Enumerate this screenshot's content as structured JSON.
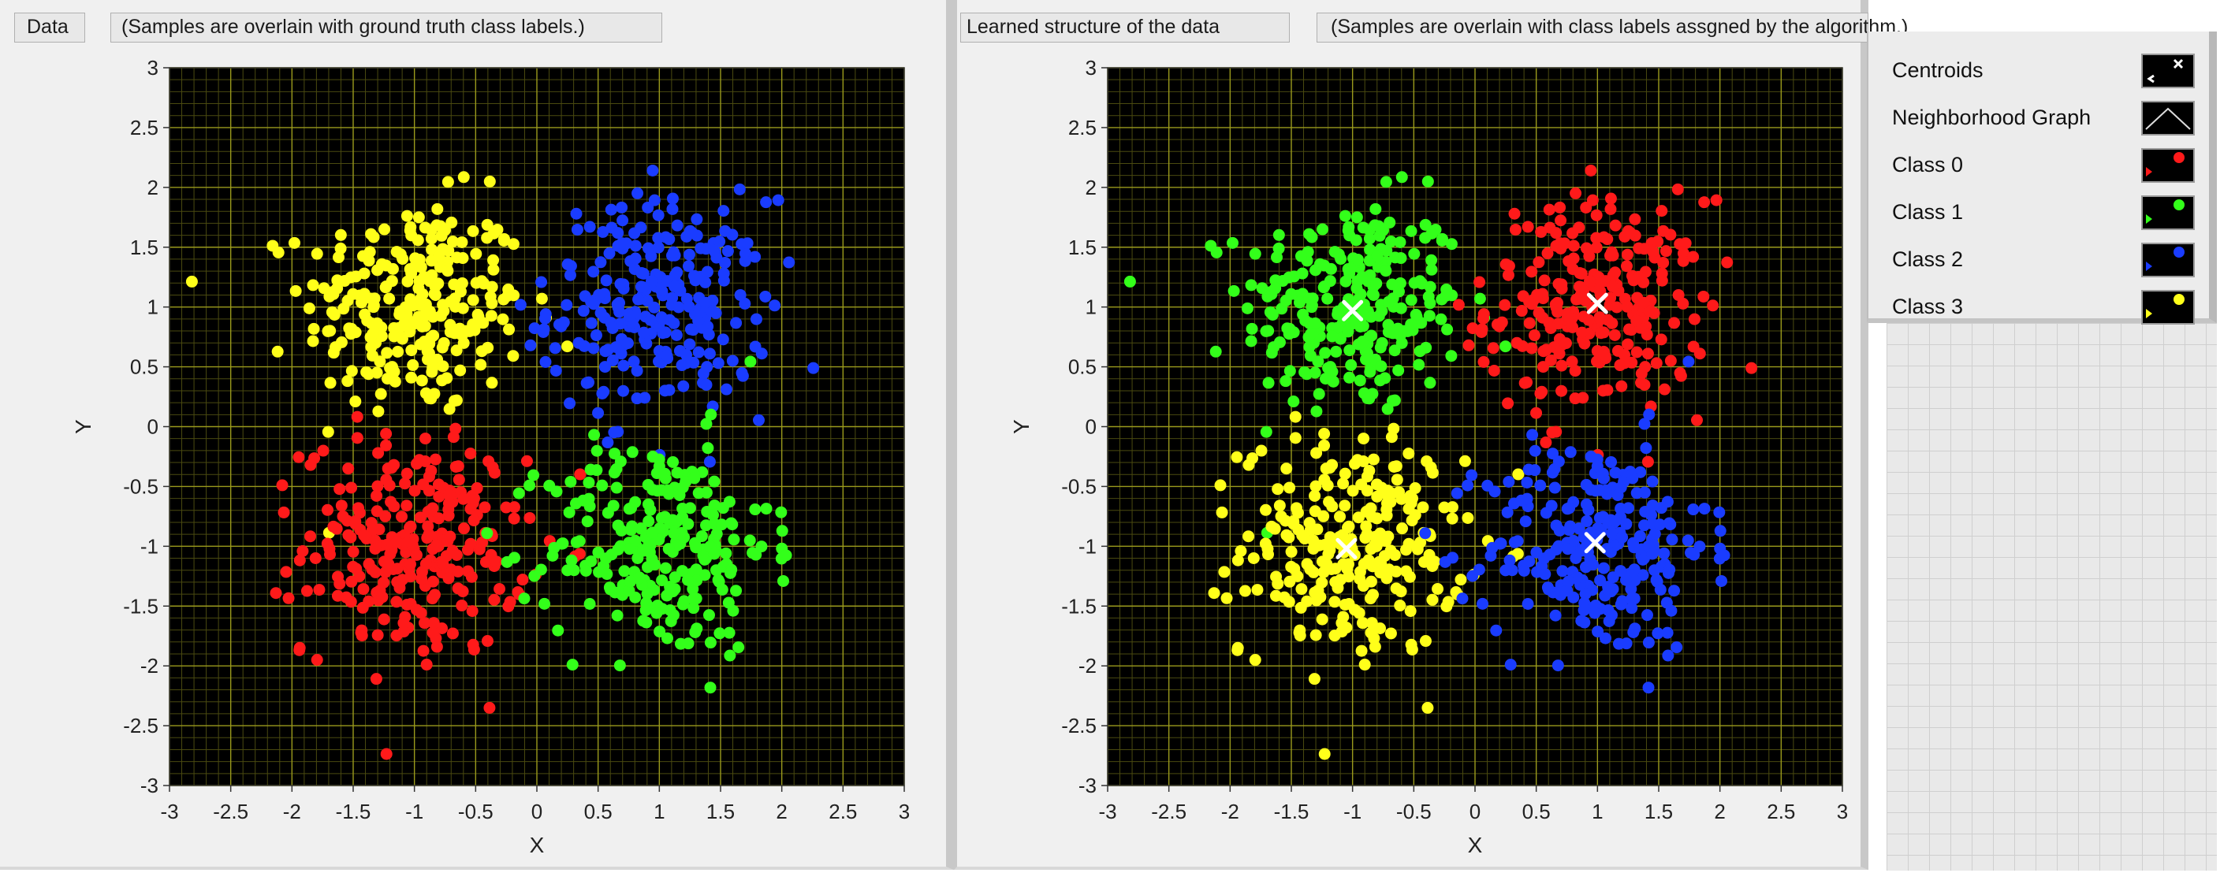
{
  "left_panel": {
    "tab_title": "Data",
    "caption": "(Samples are overlain with ground truth class labels.)"
  },
  "right_panel": {
    "tab_title": "Learned structure of the data",
    "caption": "(Samples are overlain with class labels assgned by the algorithm.)"
  },
  "legend": {
    "items": [
      {
        "label": "Centroids",
        "icon": "centroid-x-icon"
      },
      {
        "label": "Neighborhood Graph",
        "icon": "line-icon"
      },
      {
        "label": "Class 0",
        "icon": "dot-icon",
        "color": "#ff1a1a"
      },
      {
        "label": "Class 1",
        "icon": "dot-icon",
        "color": "#33ff1a"
      },
      {
        "label": "Class 2",
        "icon": "dot-icon",
        "color": "#1a3cff"
      },
      {
        "label": "Class 3",
        "icon": "dot-icon",
        "color": "#ffff1a"
      }
    ]
  },
  "colors": {
    "plot_bg": "#000000",
    "major_grid": "#9a9a1c",
    "minor_grid": "#4a4a10",
    "red": "#ff1a1a",
    "green": "#33ff1a",
    "blue": "#1a3cff",
    "yellow": "#ffff1a",
    "centroid": "#ffffff"
  },
  "chart_data": [
    {
      "type": "scatter",
      "title": "",
      "xlabel": "X",
      "ylabel": "Y",
      "xlim": [
        -3,
        3
      ],
      "ylim": [
        -3,
        3
      ],
      "xticks": [
        "-3",
        "-2.5",
        "-2",
        "-1.5",
        "-1",
        "-0.5",
        "0",
        "0.5",
        "1",
        "1.5",
        "2",
        "2.5",
        "3"
      ],
      "yticks": [
        "3",
        "2.5",
        "2",
        "1.5",
        "1",
        "0.5",
        "0",
        "-0.5",
        "-1",
        "-1.5",
        "-2",
        "-2.5",
        "-3"
      ],
      "grid": true,
      "clusters": [
        {
          "color": "yellow",
          "center": [
            -1,
            1
          ],
          "std": 0.45,
          "n": 260
        },
        {
          "color": "blue",
          "center": [
            1,
            1
          ],
          "std": 0.45,
          "n": 260
        },
        {
          "color": "red",
          "center": [
            -1,
            -1
          ],
          "std": 0.45,
          "n": 260
        },
        {
          "color": "green",
          "center": [
            1,
            -1
          ],
          "std": 0.45,
          "n": 260
        }
      ],
      "centroids": []
    },
    {
      "type": "scatter",
      "title": "",
      "xlabel": "X",
      "ylabel": "Y",
      "xlim": [
        -3,
        3
      ],
      "ylim": [
        -3,
        3
      ],
      "xticks": [
        "-3",
        "-2.5",
        "-2",
        "-1.5",
        "-1",
        "-0.5",
        "0",
        "0.5",
        "1",
        "1.5",
        "2",
        "2.5",
        "3"
      ],
      "yticks": [
        "3",
        "2.5",
        "2",
        "1.5",
        "1",
        "0.5",
        "0",
        "-0.5",
        "-1",
        "-1.5",
        "-2",
        "-2.5",
        "-3"
      ],
      "grid": true,
      "clusters": [
        {
          "color": "green",
          "center": [
            -1,
            1
          ],
          "std": 0.45,
          "n": 260
        },
        {
          "color": "red",
          "center": [
            1,
            1
          ],
          "std": 0.45,
          "n": 260
        },
        {
          "color": "yellow",
          "center": [
            -1,
            -1
          ],
          "std": 0.45,
          "n": 260
        },
        {
          "color": "blue",
          "center": [
            1,
            -1
          ],
          "std": 0.45,
          "n": 260
        }
      ],
      "centroids": [
        [
          -1.0,
          0.97
        ],
        [
          1.0,
          1.03
        ],
        [
          -1.05,
          -1.02
        ],
        [
          0.98,
          -0.97
        ]
      ]
    }
  ]
}
